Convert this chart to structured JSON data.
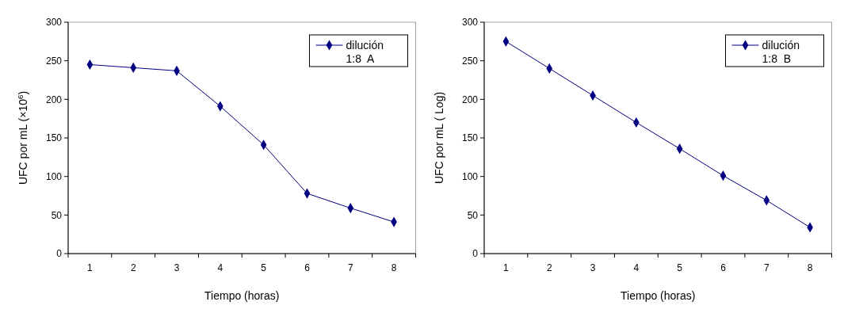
{
  "chart_data": [
    {
      "type": "line",
      "categories": [
        "1",
        "2",
        "3",
        "4",
        "5",
        "6",
        "7",
        "8"
      ],
      "xlabel": "Tiempo (horas)",
      "ylabel": "UFC por mL (×10$^{6}$)",
      "ylim": [
        0,
        300
      ],
      "yticks": [
        0,
        50,
        100,
        150,
        200,
        250,
        300
      ],
      "grid": false,
      "legend": "top right",
      "marker": "diamond",
      "line_style": "solid",
      "series": [
        {
          "name": "dilución\n1:8  A",
          "color": "#000080",
          "values": [
            245,
            241,
            237,
            191,
            141,
            78,
            59,
            41
          ]
        }
      ]
    },
    {
      "type": "line",
      "categories": [
        "1",
        "2",
        "3",
        "4",
        "5",
        "6",
        "7",
        "8"
      ],
      "xlabel": "Tiempo (horas)",
      "ylabel": "UFC por mL ( Log)",
      "ylim": [
        0,
        300
      ],
      "yticks": [
        0,
        50,
        100,
        150,
        200,
        250,
        300
      ],
      "grid": false,
      "legend": "top right",
      "marker": "diamond",
      "line_style": "solid",
      "series": [
        {
          "name": "dilución\n1:8  B",
          "color": "#000080",
          "values": [
            275,
            240,
            205,
            170,
            136,
            101,
            69,
            34
          ]
        }
      ]
    }
  ]
}
